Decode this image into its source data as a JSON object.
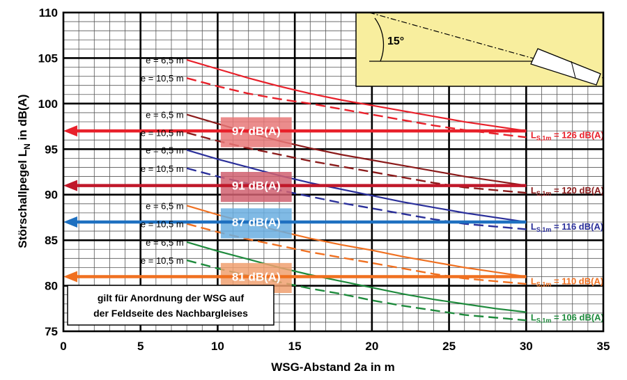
{
  "chart_data": {
    "type": "line",
    "xlabel": "WSG-Abstand 2a in m",
    "ylabel_main": "Störschallpegel L",
    "ylabel_sub": "N",
    "ylabel_unit": " in dB(A)",
    "xlim": [
      0,
      35
    ],
    "ylim": [
      75,
      110
    ],
    "x_ticks": [
      "0",
      "5",
      "10",
      "15",
      "20",
      "25",
      "30",
      "35"
    ],
    "y_ticks": [
      "75",
      "80",
      "85",
      "90",
      "95",
      "100",
      "105",
      "110"
    ],
    "grid": true,
    "series": [
      {
        "color": "#e8202a",
        "label_main": "L",
        "label_sub": "S,1m",
        "label_value": " = 126 dB(A)",
        "e_label_solid": "e = 6,5 m",
        "e_label_dashed": "e = 10,5 m",
        "solid": {
          "x": [
            8,
            10,
            12,
            14,
            16,
            18,
            20,
            22,
            24,
            26,
            28,
            30
          ],
          "y": [
            104.8,
            103.8,
            102.8,
            101.9,
            101.1,
            100.4,
            99.8,
            99.2,
            98.6,
            98.0,
            97.5,
            97.0
          ]
        },
        "dashed": {
          "x": [
            8,
            10,
            12,
            14,
            16,
            18,
            20,
            22,
            24,
            26,
            28,
            30
          ],
          "y": [
            102.8,
            101.9,
            101.1,
            100.5,
            100.0,
            99.4,
            98.8,
            98.2,
            97.6,
            97.1,
            96.7,
            96.3
          ]
        }
      },
      {
        "color": "#8b1a1a",
        "label_main": "L",
        "label_sub": "S,1m",
        "label_value": " = 120 dB(A)",
        "e_label_solid": "e = 6,5 m",
        "e_label_dashed": "e = 10,5 m",
        "solid": {
          "x": [
            8,
            10,
            12,
            14,
            16,
            18,
            20,
            22,
            24,
            26,
            28,
            30
          ],
          "y": [
            98.8,
            97.8,
            96.8,
            95.9,
            95.1,
            94.4,
            93.8,
            93.2,
            92.6,
            92.0,
            91.5,
            91.0
          ]
        },
        "dashed": {
          "x": [
            8,
            10,
            12,
            14,
            16,
            18,
            20,
            22,
            24,
            26,
            28,
            30
          ],
          "y": [
            96.8,
            95.9,
            95.1,
            94.4,
            93.7,
            93.1,
            92.5,
            91.9,
            91.3,
            90.8,
            90.5,
            90.2
          ]
        }
      },
      {
        "color": "#2a2f9a",
        "label_main": "L",
        "label_sub": "S,1m",
        "label_value": " = 116 dB(A)",
        "e_label_solid": "e = 6,5 m",
        "e_label_dashed": "e = 10,5 m",
        "solid": {
          "x": [
            8,
            10,
            12,
            14,
            16,
            18,
            20,
            22,
            24,
            26,
            28,
            30
          ],
          "y": [
            94.9,
            93.9,
            93.0,
            92.1,
            91.3,
            90.6,
            89.9,
            89.2,
            88.6,
            88.0,
            87.5,
            87.0
          ]
        },
        "dashed": {
          "x": [
            8,
            10,
            12,
            14,
            16,
            18,
            20,
            22,
            24,
            26,
            28,
            30
          ],
          "y": [
            92.9,
            92.0,
            91.2,
            90.5,
            89.8,
            89.1,
            88.5,
            87.9,
            87.3,
            86.8,
            86.5,
            86.2
          ]
        }
      },
      {
        "color": "#f07020",
        "label_main": "L",
        "label_sub": "S,1m",
        "label_value": " = 110 dB(A)",
        "e_label_solid": "e = 6,5 m",
        "e_label_dashed": "e = 10,5 m",
        "solid": {
          "x": [
            8,
            10,
            12,
            14,
            16,
            18,
            20,
            22,
            24,
            26,
            28,
            30
          ],
          "y": [
            88.8,
            87.8,
            86.9,
            86.0,
            85.2,
            84.5,
            83.9,
            83.2,
            82.6,
            82.0,
            81.5,
            81.0
          ]
        },
        "dashed": {
          "x": [
            8,
            10,
            12,
            14,
            16,
            18,
            20,
            22,
            24,
            26,
            28,
            30
          ],
          "y": [
            86.8,
            85.9,
            85.1,
            84.4,
            83.7,
            83.1,
            82.5,
            81.9,
            81.3,
            80.8,
            80.5,
            80.2
          ]
        }
      },
      {
        "color": "#1e8a3c",
        "label_main": "L",
        "label_sub": "S,1m",
        "label_value": " = 106 dB(A)",
        "e_label_solid": "e = 6,5 m",
        "e_label_dashed": "e = 10,5 m",
        "solid": {
          "x": [
            8,
            10,
            12,
            14,
            16,
            18,
            20,
            22,
            24,
            26,
            28,
            30
          ],
          "y": [
            84.8,
            83.8,
            82.9,
            82.0,
            81.2,
            80.5,
            79.8,
            79.1,
            78.5,
            78.0,
            77.5,
            77.1
          ]
        },
        "dashed": {
          "x": [
            8,
            10,
            12,
            14,
            16,
            18,
            20,
            22,
            24,
            26,
            28,
            30
          ],
          "y": [
            82.8,
            81.9,
            81.1,
            80.4,
            79.7,
            79.1,
            78.4,
            77.8,
            77.3,
            76.8,
            76.5,
            76.2
          ]
        }
      }
    ],
    "threshold_arrows": [
      {
        "value": 97,
        "label": "97 dB(A)",
        "color": "#e8202a",
        "box": "#e87878"
      },
      {
        "value": 91,
        "label": "91 dB(A)",
        "color": "#c0182a",
        "box": "#d06070"
      },
      {
        "value": 87,
        "label": "87 dB(A)",
        "color": "#1e70c0",
        "box": "#6aaee0"
      },
      {
        "value": 81,
        "label": "81 dB(A)",
        "color": "#f07020",
        "box": "#f0a070"
      }
    ],
    "note": [
      "gilt für Anordnung der WSG auf",
      "der Feldseite des Nachbargleises"
    ],
    "inset": {
      "angle_label": "15°"
    }
  }
}
